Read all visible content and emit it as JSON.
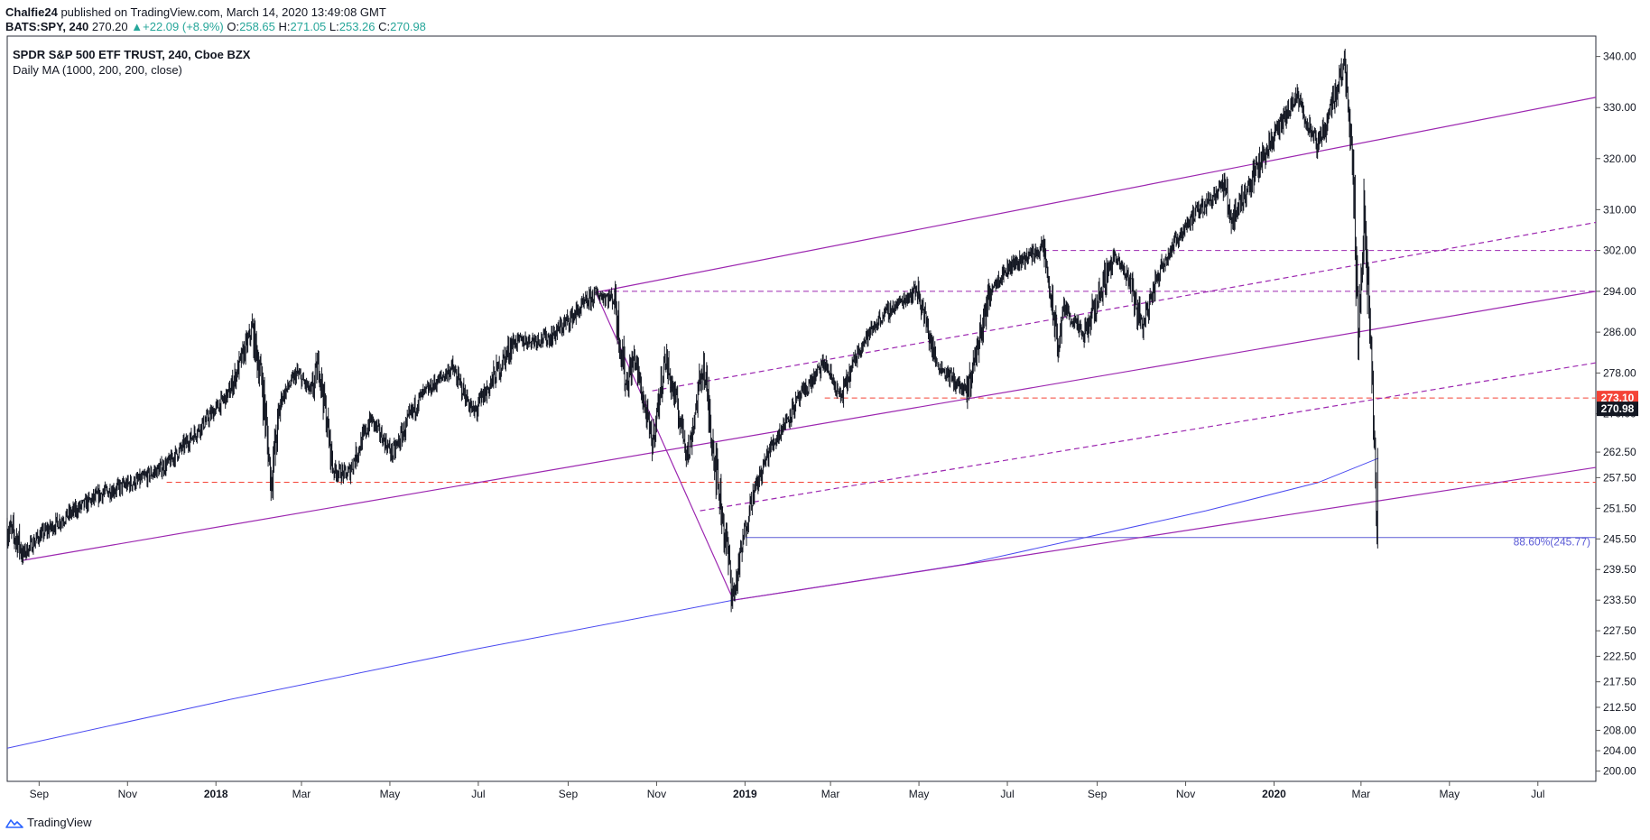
{
  "header": {
    "author": "Chalfie24",
    "published": "published on TradingView.com, March 14, 2020 13:49:08 GMT",
    "symbol": "BATS:SPY, 240",
    "last": "270.20",
    "change": "+22.09 (+8.9%)",
    "o_label": "O:",
    "o": "258.65",
    "h_label": "H:",
    "h": "271.05",
    "l_label": "L:",
    "l": "253.26",
    "c_label": "C:",
    "c": "270.98"
  },
  "footer": {
    "brand": "TradingView"
  },
  "colors": {
    "channel": "#9c27b0",
    "ma": "#4a4af0",
    "support": "#f44336",
    "fib": "#5b5bd6",
    "last_badge": "#131722",
    "level_badge": "#f44336",
    "candle": "#131722"
  },
  "chart_data": {
    "type": "line",
    "title": "SPDR S&P 500 ETF TRUST, 240, Cboe BZX",
    "subtitle": "Daily MA (1000, 200, 200, close)",
    "ylim": [
      198,
      344
    ],
    "xlim": [
      "2017-08-10",
      "2020-08-10"
    ],
    "y_ticks": [
      "340.00",
      "330.00",
      "320.00",
      "310.00",
      "302.00",
      "294.00",
      "286.00",
      "278.00",
      "270.00",
      "262.50",
      "257.50",
      "251.50",
      "245.50",
      "239.50",
      "233.50",
      "227.50",
      "222.50",
      "217.50",
      "212.50",
      "208.00",
      "204.00",
      "200.00"
    ],
    "x_ticks": [
      {
        "date": "2017-09-01",
        "label": "Sep",
        "bold": false
      },
      {
        "date": "2017-11-01",
        "label": "Nov",
        "bold": false
      },
      {
        "date": "2018-01-01",
        "label": "2018",
        "bold": true
      },
      {
        "date": "2018-03-01",
        "label": "Mar",
        "bold": false
      },
      {
        "date": "2018-05-01",
        "label": "May",
        "bold": false
      },
      {
        "date": "2018-07-01",
        "label": "Jul",
        "bold": false
      },
      {
        "date": "2018-09-01",
        "label": "Sep",
        "bold": false
      },
      {
        "date": "2018-11-01",
        "label": "Nov",
        "bold": false
      },
      {
        "date": "2019-01-01",
        "label": "2019",
        "bold": true
      },
      {
        "date": "2019-03-01",
        "label": "Mar",
        "bold": false
      },
      {
        "date": "2019-05-01",
        "label": "May",
        "bold": false
      },
      {
        "date": "2019-07-01",
        "label": "Jul",
        "bold": false
      },
      {
        "date": "2019-09-01",
        "label": "Sep",
        "bold": false
      },
      {
        "date": "2019-11-01",
        "label": "Nov",
        "bold": false
      },
      {
        "date": "2020-01-01",
        "label": "2020",
        "bold": true
      },
      {
        "date": "2020-03-01",
        "label": "Mar",
        "bold": false
      },
      {
        "date": "2020-05-01",
        "label": "May",
        "bold": false
      },
      {
        "date": "2020-07-01",
        "label": "Jul",
        "bold": false
      }
    ],
    "price_path": [
      [
        "2017-08-10",
        247.5
      ],
      [
        "2017-08-17",
        245.5
      ],
      [
        "2017-08-21",
        242.5
      ],
      [
        "2017-09-01",
        246
      ],
      [
        "2017-09-20",
        250
      ],
      [
        "2017-10-15",
        254.5
      ],
      [
        "2017-11-10",
        257
      ],
      [
        "2017-11-28",
        260
      ],
      [
        "2017-12-20",
        267
      ],
      [
        "2018-01-10",
        274
      ],
      [
        "2018-01-26",
        286.5
      ],
      [
        "2018-02-02",
        276
      ],
      [
        "2018-02-08",
        257
      ],
      [
        "2018-02-15",
        273
      ],
      [
        "2018-02-26",
        278
      ],
      [
        "2018-03-08",
        274
      ],
      [
        "2018-03-13",
        280
      ],
      [
        "2018-03-23",
        259
      ],
      [
        "2018-04-02",
        258
      ],
      [
        "2018-04-18",
        269
      ],
      [
        "2018-05-03",
        262
      ],
      [
        "2018-05-21",
        273
      ],
      [
        "2018-06-13",
        279
      ],
      [
        "2018-06-28",
        270
      ],
      [
        "2018-07-25",
        284
      ],
      [
        "2018-08-20",
        285
      ],
      [
        "2018-09-20",
        293.5
      ],
      [
        "2018-10-03",
        292.5
      ],
      [
        "2018-10-11",
        276
      ],
      [
        "2018-10-17",
        281
      ],
      [
        "2018-10-29",
        264
      ],
      [
        "2018-11-07",
        281
      ],
      [
        "2018-11-23",
        262
      ],
      [
        "2018-12-03",
        280
      ],
      [
        "2018-12-10",
        264
      ],
      [
        "2018-12-24",
        234
      ],
      [
        "2019-01-04",
        252
      ],
      [
        "2019-01-18",
        263
      ],
      [
        "2019-02-05",
        272
      ],
      [
        "2019-02-25",
        280
      ],
      [
        "2019-03-08",
        273
      ],
      [
        "2019-03-21",
        283
      ],
      [
        "2019-04-05",
        289
      ],
      [
        "2019-04-30",
        294.5
      ],
      [
        "2019-05-13",
        280
      ],
      [
        "2019-06-03",
        274
      ],
      [
        "2019-06-20",
        295
      ],
      [
        "2019-07-03",
        299
      ],
      [
        "2019-07-26",
        302.5
      ],
      [
        "2019-08-05",
        283
      ],
      [
        "2019-08-09",
        291
      ],
      [
        "2019-08-23",
        285
      ],
      [
        "2019-09-12",
        301
      ],
      [
        "2019-09-24",
        296
      ],
      [
        "2019-10-02",
        287
      ],
      [
        "2019-10-15",
        299
      ],
      [
        "2019-11-01",
        307
      ],
      [
        "2019-11-27",
        315
      ],
      [
        "2019-12-03",
        308
      ],
      [
        "2019-12-27",
        322
      ],
      [
        "2020-01-17",
        332
      ],
      [
        "2020-01-31",
        322
      ],
      [
        "2020-02-19",
        339
      ],
      [
        "2020-02-24",
        322
      ],
      [
        "2020-02-28",
        285
      ],
      [
        "2020-03-03",
        310
      ],
      [
        "2020-03-09",
        274
      ],
      [
        "2020-03-12",
        248
      ],
      [
        "2020-03-13",
        270.98
      ]
    ],
    "moving_average": [
      [
        "2017-08-10",
        204.5
      ],
      [
        "2018-01-10",
        214
      ],
      [
        "2018-07-01",
        224
      ],
      [
        "2018-12-24",
        233.5
      ],
      [
        "2019-06-01",
        240.5
      ],
      [
        "2019-11-15",
        251
      ],
      [
        "2020-01-31",
        256.5
      ],
      [
        "2020-03-13",
        261.3
      ]
    ],
    "channel_lines": [
      {
        "p1": [
          "2017-08-21",
          241.3
        ],
        "p2": [
          "2020-08-10",
          294.0
        ],
        "dash": false
      },
      {
        "p1": [
          "2018-09-20",
          293.8
        ],
        "p2": [
          "2020-08-10",
          332.0
        ],
        "dash": false
      },
      {
        "p1": [
          "2018-12-24",
          233.5
        ],
        "p2": [
          "2020-08-10",
          259.5
        ],
        "dash": false
      },
      {
        "p1": [
          "2018-10-29",
          274.5
        ],
        "p2": [
          "2020-08-10",
          307.5
        ],
        "dash": true
      },
      {
        "p1": [
          "2018-12-01",
          251.0
        ],
        "p2": [
          "2020-08-10",
          280.0
        ],
        "dash": true
      },
      {
        "p1": [
          "2018-09-20",
          293.8
        ],
        "p2": [
          "2018-12-24",
          233.5
        ],
        "dash": false
      }
    ],
    "horizontal_levels": [
      {
        "y": 294,
        "from": "2018-09-20",
        "to": "2020-08-10",
        "color": "channel",
        "dash": true
      },
      {
        "y": 302,
        "from": "2019-07-26",
        "to": "2020-08-10",
        "color": "channel",
        "dash": true
      },
      {
        "y": 273.1,
        "from": "2019-02-25",
        "to": "2020-08-10",
        "color": "support",
        "dash": true
      },
      {
        "y": 256.6,
        "from": "2017-11-28",
        "to": "2020-08-10",
        "color": "support",
        "dash": true
      },
      {
        "y": 245.77,
        "from": "2019-01-01",
        "to": "2020-08-10",
        "color": "fib",
        "dash": false
      }
    ],
    "fib_label": "88.60%(245.77)",
    "price_badges": [
      {
        "value": "273.10",
        "y": 273.1,
        "color": "level_badge"
      },
      {
        "value": "270.98",
        "y": 270.98,
        "color": "last_badge"
      }
    ]
  }
}
